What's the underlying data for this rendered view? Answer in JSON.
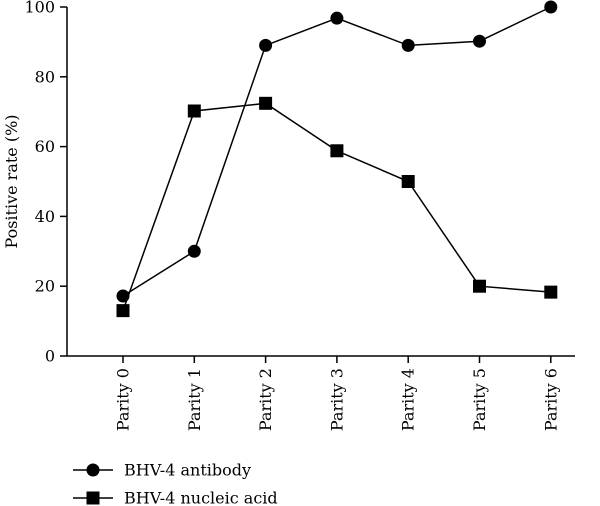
{
  "chart_data": {
    "type": "line",
    "categories": [
      "Parity 0",
      "Parity 1",
      "Parity 2",
      "Parity 3",
      "Parity 4",
      "Parity 5",
      "Parity 6"
    ],
    "ylabel": "Positive rate (%)",
    "ylim": [
      0,
      100
    ],
    "yticks": [
      0,
      20,
      40,
      60,
      80,
      100
    ],
    "grid": false,
    "legend_position": "bottom-left",
    "series": [
      {
        "name": "BHV-4 antibody",
        "marker": "circle",
        "color": "#000000",
        "values": [
          17.2,
          30.0,
          89.0,
          96.8,
          89.0,
          90.2,
          100.0
        ]
      },
      {
        "name": "BHV-4 nucleic acid",
        "marker": "square",
        "color": "#000000",
        "values": [
          13.0,
          70.2,
          72.4,
          58.8,
          50.0,
          20.0,
          18.3
        ]
      }
    ]
  }
}
